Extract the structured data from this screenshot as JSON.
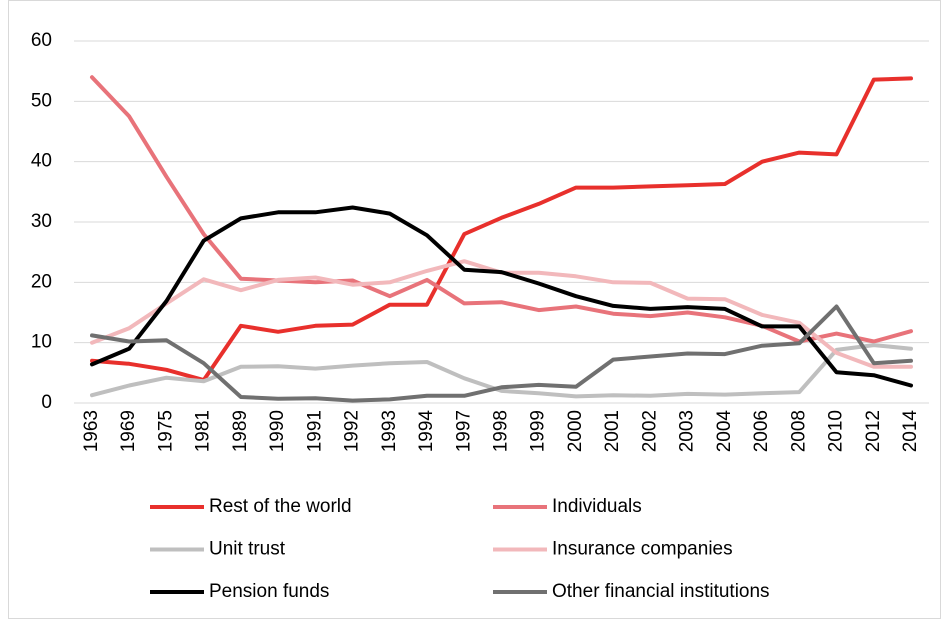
{
  "chart_data": {
    "type": "line",
    "categories": [
      "1963",
      "1969",
      "1975",
      "1981",
      "1989",
      "1990",
      "1991",
      "1992",
      "1993",
      "1994",
      "1997",
      "1998",
      "1999",
      "2000",
      "2001",
      "2002",
      "2003",
      "2004",
      "2006",
      "2008",
      "2010",
      "2012",
      "2014"
    ],
    "series": [
      {
        "name": "Rest of the world",
        "color": "#e8302c",
        "values": [
          7,
          6.5,
          5.5,
          3.8,
          12.8,
          11.8,
          12.8,
          13,
          16.3,
          16.3,
          28,
          30.7,
          33,
          35.7,
          35.7,
          35.9,
          36.1,
          36.3,
          40,
          41.5,
          41.2,
          53.6,
          53.8
        ]
      },
      {
        "name": "Individuals",
        "color": "#e8737a",
        "values": [
          54,
          47.5,
          37.5,
          28,
          20.6,
          20.3,
          20,
          20.3,
          17.7,
          20.4,
          16.5,
          16.7,
          15.4,
          16,
          14.8,
          14.4,
          15,
          14.2,
          12.8,
          10.2,
          11.5,
          10.2,
          11.9
        ]
      },
      {
        "name": "Unit trust",
        "color": "#bfbfbf",
        "values": [
          1.3,
          2.9,
          4.2,
          3.6,
          6,
          6.1,
          5.7,
          6.2,
          6.6,
          6.8,
          4.1,
          2,
          1.6,
          1.1,
          1.3,
          1.2,
          1.5,
          1.4,
          1.6,
          1.8,
          8.8,
          9.6,
          9
        ]
      },
      {
        "name": "Insurance companies",
        "color": "#f2b8bb",
        "values": [
          10,
          12.4,
          16.5,
          20.5,
          18.7,
          20.4,
          20.8,
          19.6,
          20,
          21.9,
          23.5,
          21.6,
          21.6,
          21,
          20,
          19.9,
          17.3,
          17.2,
          14.6,
          13.3,
          8.3,
          6,
          6
        ]
      },
      {
        "name": "Pension funds",
        "color": "#000000",
        "values": [
          6.4,
          9,
          16.9,
          26.9,
          30.6,
          31.6,
          31.6,
          32.4,
          31.4,
          27.8,
          22.1,
          21.7,
          19.8,
          17.7,
          16.1,
          15.6,
          15.9,
          15.6,
          12.7,
          12.7,
          5.1,
          4.6,
          2.9
        ]
      },
      {
        "name": "Other financial institutions",
        "color": "#707070",
        "values": [
          11.2,
          10.2,
          10.4,
          6.6,
          1,
          0.7,
          0.8,
          0.4,
          0.6,
          1.2,
          1.2,
          2.6,
          3,
          2.7,
          7.2,
          7.7,
          8.2,
          8.1,
          9.5,
          9.9,
          16,
          6.6,
          7
        ]
      }
    ],
    "ylim": [
      0,
      60
    ],
    "yticks": [
      0,
      10,
      20,
      30,
      40,
      50,
      60
    ],
    "grid": true
  }
}
